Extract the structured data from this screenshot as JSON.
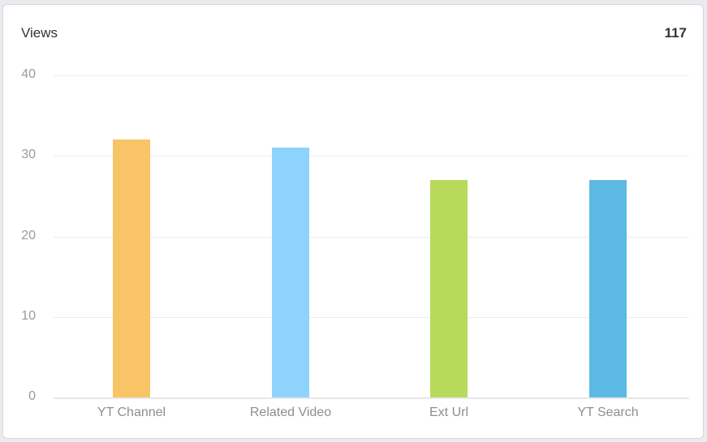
{
  "card": {
    "title": "Views",
    "total": "117"
  },
  "chart_data": {
    "type": "bar",
    "title": "Views",
    "categories": [
      "YT Channel",
      "Related Video",
      "Ext Url",
      "YT Search"
    ],
    "values": [
      32,
      31,
      27,
      27
    ],
    "colors": [
      "#f9c466",
      "#8dd3fe",
      "#b8da5a",
      "#5bb9e4"
    ],
    "xlabel": "",
    "ylabel": "",
    "ylim": [
      0,
      40
    ],
    "yticks": [
      "0",
      "10",
      "20",
      "30",
      "40"
    ],
    "grid": true,
    "legend": "none",
    "total": 117
  }
}
